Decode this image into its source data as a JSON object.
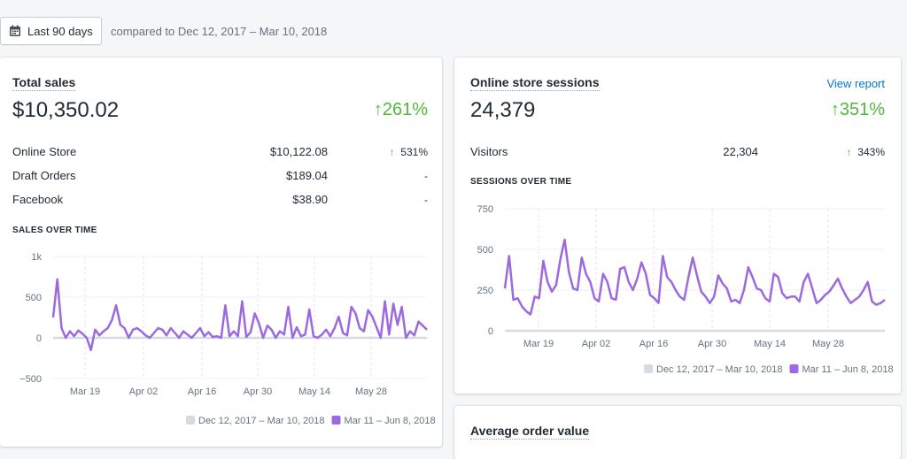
{
  "date_range": {
    "button_label": "Last 90 days",
    "compare_text": "compared to Dec 12, 2017 – Mar 10, 2018",
    "icon": "calendar-icon"
  },
  "colors": {
    "current": "#9c6ade",
    "previous": "#d5dbe0",
    "positive": "#50b83c",
    "link": "#007ace"
  },
  "total_sales": {
    "title": "Total sales",
    "value": "$10,350.02",
    "change": "261%",
    "rows": [
      {
        "label": "Online Store",
        "value": "$10,122.08",
        "change": "531%",
        "up": true
      },
      {
        "label": "Draft Orders",
        "value": "$189.04",
        "change": "-",
        "up": false
      },
      {
        "label": "Facebook",
        "value": "$38.90",
        "change": "-",
        "up": false
      }
    ],
    "chart_heading": "SALES OVER TIME"
  },
  "sessions": {
    "title": "Online store sessions",
    "view_report": "View report",
    "value": "24,379",
    "change": "351%",
    "rows": [
      {
        "label": "Visitors",
        "value": "22,304",
        "change": "343%",
        "up": true
      }
    ],
    "chart_heading": "SESSIONS OVER TIME"
  },
  "avg_order": {
    "title": "Average order value"
  },
  "chart_data": [
    {
      "type": "line",
      "y_tick_labels": [
        "1k",
        "500",
        "0",
        "−500"
      ],
      "y_ticks": [
        1000,
        500,
        0,
        -500
      ],
      "ylim": [
        -500,
        1000
      ],
      "x_tick_labels": [
        "Mar 19",
        "Apr 02",
        "Apr 16",
        "Apr 30",
        "May 14",
        "May 28"
      ],
      "grid": true,
      "legend_position": "bottom-right",
      "series": [
        {
          "name": "Dec 12, 2017 – Mar 10, 2018",
          "values": [
            0,
            0,
            0,
            0,
            0,
            0,
            0,
            0,
            0,
            0,
            0,
            0,
            0,
            0,
            0,
            0,
            0,
            0,
            0,
            0,
            0,
            0,
            0,
            0,
            0,
            0,
            0,
            0,
            0,
            0,
            0,
            0,
            0,
            0,
            0,
            0,
            0,
            0,
            0,
            0,
            0,
            0,
            0,
            0,
            0,
            0,
            0,
            0,
            0,
            0,
            0,
            0,
            0,
            0,
            0,
            0,
            0,
            0,
            0,
            0,
            0,
            0,
            0,
            0,
            0,
            0,
            0,
            0,
            0,
            0,
            0,
            0,
            0,
            0,
            0,
            0,
            0,
            0,
            0,
            0,
            0,
            0,
            0,
            0,
            0,
            0,
            0,
            0,
            0,
            0
          ]
        },
        {
          "name": "Mar 11 – Jun 8, 2018",
          "values": [
            250,
            720,
            120,
            0,
            80,
            20,
            90,
            50,
            0,
            -150,
            100,
            30,
            80,
            120,
            220,
            400,
            160,
            120,
            0,
            100,
            120,
            80,
            30,
            0,
            60,
            120,
            100,
            30,
            120,
            60,
            0,
            80,
            40,
            0,
            60,
            120,
            20,
            70,
            10,
            20,
            0,
            400,
            20,
            80,
            20,
            450,
            10,
            70,
            300,
            180,
            0,
            150,
            100,
            0,
            80,
            40,
            380,
            0,
            130,
            20,
            40,
            350,
            20,
            0,
            40,
            100,
            20,
            120,
            260,
            60,
            30,
            380,
            300,
            120,
            80,
            340,
            260,
            130,
            0,
            450,
            40,
            420,
            160,
            380,
            0,
            80,
            30,
            200,
            150,
            100
          ]
        }
      ]
    },
    {
      "type": "line",
      "y_tick_labels": [
        "750",
        "500",
        "250",
        "0"
      ],
      "y_ticks": [
        750,
        500,
        250,
        0
      ],
      "ylim": [
        0,
        750
      ],
      "x_tick_labels": [
        "Mar 19",
        "Apr 02",
        "Apr 16",
        "Apr 30",
        "May 14",
        "May 28"
      ],
      "grid": true,
      "legend_position": "bottom-right",
      "series": [
        {
          "name": "Dec 12, 2017 – Mar 10, 2018",
          "values": [
            0,
            0,
            0,
            0,
            0,
            0,
            0,
            0,
            0,
            0,
            0,
            0,
            0,
            0,
            0,
            0,
            0,
            0,
            0,
            0,
            0,
            0,
            0,
            0,
            0,
            0,
            0,
            0,
            0,
            0,
            0,
            0,
            0,
            0,
            0,
            0,
            0,
            0,
            0,
            0,
            0,
            0,
            0,
            0,
            0,
            0,
            0,
            0,
            0,
            0,
            0,
            0,
            0,
            0,
            0,
            0,
            0,
            0,
            0,
            0,
            0,
            0,
            0,
            0,
            0,
            0,
            0,
            0,
            0,
            0,
            0,
            0,
            0,
            0,
            0,
            0,
            0,
            0,
            0,
            0,
            0,
            0,
            0,
            0,
            0,
            0,
            0,
            0,
            0,
            0
          ]
        },
        {
          "name": "Mar 11 – Jun 8, 2018",
          "values": [
            260,
            460,
            190,
            200,
            150,
            120,
            100,
            210,
            200,
            430,
            300,
            240,
            280,
            440,
            560,
            360,
            260,
            250,
            450,
            350,
            300,
            200,
            180,
            350,
            300,
            200,
            190,
            380,
            390,
            300,
            250,
            320,
            420,
            350,
            220,
            200,
            170,
            460,
            330,
            300,
            250,
            210,
            190,
            330,
            450,
            340,
            240,
            210,
            170,
            210,
            340,
            290,
            260,
            180,
            190,
            170,
            250,
            390,
            330,
            260,
            250,
            200,
            180,
            350,
            330,
            230,
            200,
            210,
            210,
            180,
            300,
            350,
            260,
            170,
            190,
            220,
            240,
            280,
            320,
            260,
            210,
            170,
            190,
            210,
            250,
            300,
            180,
            160,
            170,
            190
          ]
        }
      ]
    }
  ]
}
